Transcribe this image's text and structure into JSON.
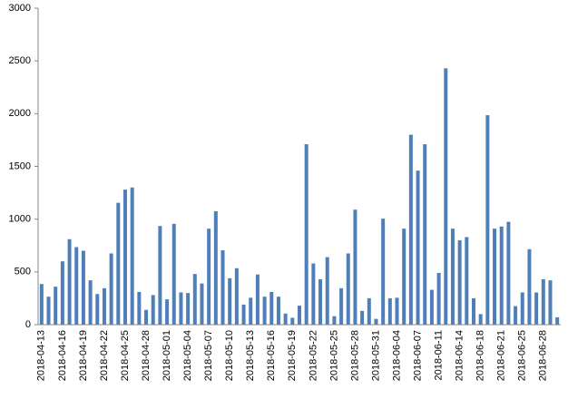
{
  "chart_data": {
    "type": "bar",
    "color": "#4f7fb8",
    "categories": [
      "2018-04-13",
      null,
      null,
      "2018-04-16",
      null,
      null,
      "2018-04-19",
      null,
      null,
      "2018-04-22",
      null,
      null,
      "2018-04-25",
      null,
      null,
      "2018-04-28",
      null,
      null,
      "2018-05-01",
      null,
      null,
      "2018-05-04",
      null,
      null,
      "2018-05-07",
      null,
      null,
      "2018-05-10",
      null,
      null,
      "2018-05-13",
      null,
      null,
      "2018-05-16",
      null,
      null,
      "2018-05-19",
      null,
      null,
      "2018-05-22",
      null,
      null,
      "2018-05-25",
      null,
      null,
      "2018-05-28",
      null,
      null,
      "2018-05-31",
      null,
      null,
      "2018-06-04",
      null,
      null,
      "2018-06-07",
      null,
      null,
      "2018-06-11",
      null,
      null,
      "2018-06-14",
      null,
      null,
      "2018-06-18",
      null,
      null,
      "2018-06-21",
      null,
      null,
      "2018-06-25",
      null,
      null,
      "2018-06-28",
      null,
      null
    ],
    "values": [
      385,
      265,
      360,
      600,
      810,
      735,
      700,
      420,
      290,
      345,
      675,
      1155,
      1280,
      1300,
      310,
      140,
      280,
      935,
      240,
      955,
      305,
      300,
      480,
      390,
      910,
      1075,
      705,
      440,
      535,
      190,
      255,
      475,
      265,
      310,
      265,
      105,
      65,
      180,
      1710,
      580,
      430,
      640,
      80,
      345,
      675,
      1090,
      130,
      250,
      55,
      1005,
      250,
      255,
      910,
      1800,
      1460,
      1710,
      330,
      490,
      2430,
      910,
      800,
      830,
      250,
      100,
      1985,
      910,
      930,
      975,
      175,
      305,
      715,
      305,
      430,
      420,
      70
    ],
    "ylim": [
      0,
      3000
    ],
    "yticks": [
      0,
      500,
      1000,
      1500,
      2000,
      2500,
      3000
    ]
  }
}
